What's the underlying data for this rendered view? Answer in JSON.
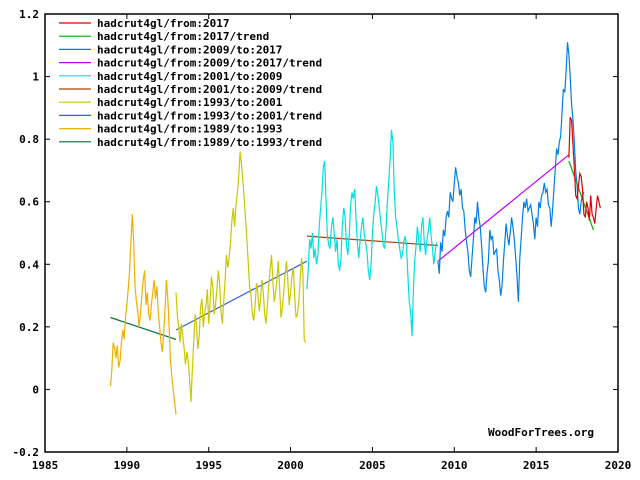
{
  "chart_data": {
    "type": "line",
    "title": "",
    "xlabel": "",
    "ylabel": "",
    "xlim": [
      1985,
      2020
    ],
    "ylim": [
      -0.2,
      1.2
    ],
    "xticks": [
      "1985",
      "1990",
      "1995",
      "2000",
      "2005",
      "2010",
      "2015",
      "2020"
    ],
    "xtick_values": [
      1985,
      1990,
      1995,
      2000,
      2005,
      2010,
      2015,
      2020
    ],
    "yticks": [
      "-0.2",
      "0",
      "0.2",
      "0.4",
      "0.6",
      "0.8",
      "1",
      "1.2"
    ],
    "ytick_values": [
      -0.2,
      0,
      0.2,
      0.4,
      0.6,
      0.8,
      1.0,
      1.2
    ],
    "grid": false,
    "legend_position": "top-left",
    "credit": "WoodForTrees.org",
    "series": [
      {
        "name": "hadcrut4gl/from:2017",
        "color": "#e00000",
        "kind": "data",
        "x0": 2017.0,
        "values": [
          0.74,
          0.87,
          0.86,
          0.78,
          0.71,
          0.62,
          0.61,
          0.65,
          0.69,
          0.68,
          0.64,
          0.56,
          0.55,
          0.6,
          0.58,
          0.54,
          0.62,
          0.56,
          0.55,
          0.53,
          0.58,
          0.62,
          0.6,
          0.58
        ]
      },
      {
        "name": "hadcrut4gl/from:2017/trend",
        "color": "#00b000",
        "kind": "trend",
        "x": [
          2017.0,
          2018.5
        ],
        "values": [
          0.73,
          0.51
        ]
      },
      {
        "name": "hadcrut4gl/from:2009/to:2017",
        "color": "#0080e0",
        "kind": "data",
        "x0": 2009.0,
        "values": [
          0.41,
          0.37,
          0.47,
          0.44,
          0.51,
          0.49,
          0.55,
          0.57,
          0.55,
          0.63,
          0.61,
          0.6,
          0.66,
          0.71,
          0.68,
          0.66,
          0.62,
          0.64,
          0.58,
          0.57,
          0.51,
          0.47,
          0.44,
          0.38,
          0.36,
          0.42,
          0.48,
          0.55,
          0.53,
          0.6,
          0.55,
          0.52,
          0.46,
          0.39,
          0.33,
          0.31,
          0.37,
          0.41,
          0.51,
          0.48,
          0.49,
          0.43,
          0.44,
          0.45,
          0.38,
          0.35,
          0.3,
          0.33,
          0.41,
          0.47,
          0.53,
          0.49,
          0.46,
          0.5,
          0.55,
          0.52,
          0.48,
          0.42,
          0.36,
          0.28,
          0.42,
          0.48,
          0.55,
          0.6,
          0.58,
          0.61,
          0.57,
          0.58,
          0.59,
          0.56,
          0.53,
          0.48,
          0.55,
          0.52,
          0.6,
          0.58,
          0.62,
          0.63,
          0.66,
          0.63,
          0.64,
          0.59,
          0.58,
          0.52,
          0.57,
          0.64,
          0.7,
          0.77,
          0.75,
          0.79,
          0.81,
          0.89,
          0.96,
          0.95,
          1.02,
          1.11,
          1.07,
          1.0,
          0.91,
          0.86,
          0.79,
          0.7,
          0.65,
          0.58,
          0.56,
          0.6,
          0.62,
          0.63
        ]
      },
      {
        "name": "hadcrut4gl/from:2009/to:2017/trend",
        "color": "#c000ff",
        "kind": "trend",
        "x": [
          2009.0,
          2017.0
        ],
        "values": [
          0.41,
          0.75
        ]
      },
      {
        "name": "hadcrut4gl/from:2001/to:2009",
        "color": "#00e0e0",
        "kind": "data",
        "x0": 2001.0,
        "values": [
          0.32,
          0.39,
          0.48,
          0.45,
          0.5,
          0.42,
          0.45,
          0.4,
          0.43,
          0.52,
          0.58,
          0.63,
          0.71,
          0.73,
          0.61,
          0.49,
          0.46,
          0.45,
          0.52,
          0.55,
          0.5,
          0.44,
          0.48,
          0.4,
          0.38,
          0.42,
          0.53,
          0.58,
          0.55,
          0.46,
          0.43,
          0.49,
          0.59,
          0.63,
          0.61,
          0.64,
          0.54,
          0.47,
          0.42,
          0.48,
          0.52,
          0.55,
          0.5,
          0.47,
          0.44,
          0.38,
          0.35,
          0.4,
          0.5,
          0.56,
          0.6,
          0.65,
          0.62,
          0.58,
          0.54,
          0.5,
          0.46,
          0.45,
          0.52,
          0.6,
          0.67,
          0.74,
          0.83,
          0.79,
          0.63,
          0.55,
          0.52,
          0.48,
          0.45,
          0.42,
          0.43,
          0.47,
          0.49,
          0.46,
          0.36,
          0.28,
          0.25,
          0.17,
          0.32,
          0.41,
          0.46,
          0.52,
          0.48,
          0.44,
          0.52,
          0.55,
          0.47,
          0.43,
          0.48,
          0.51,
          0.55,
          0.49,
          0.45,
          0.4,
          0.44,
          0.47
        ]
      },
      {
        "name": "hadcrut4gl/from:2001/to:2009/trend",
        "color": "#b04000",
        "kind": "trend",
        "x": [
          2001.0,
          2009.0
        ],
        "values": [
          0.49,
          0.46
        ]
      },
      {
        "name": "hadcrut4gl/from:1993/to:2001",
        "color": "#c8c800",
        "kind": "data",
        "x0": 1993.0,
        "values": [
          0.31,
          0.24,
          0.2,
          0.15,
          0.21,
          0.17,
          0.13,
          0.08,
          0.12,
          0.09,
          0.03,
          -0.04,
          0.06,
          0.15,
          0.24,
          0.21,
          0.13,
          0.17,
          0.26,
          0.29,
          0.2,
          0.24,
          0.27,
          0.32,
          0.21,
          0.28,
          0.36,
          0.33,
          0.24,
          0.27,
          0.32,
          0.38,
          0.34,
          0.25,
          0.21,
          0.28,
          0.35,
          0.43,
          0.39,
          0.42,
          0.47,
          0.54,
          0.58,
          0.52,
          0.59,
          0.63,
          0.68,
          0.76,
          0.72,
          0.67,
          0.61,
          0.55,
          0.48,
          0.4,
          0.33,
          0.3,
          0.24,
          0.22,
          0.27,
          0.34,
          0.31,
          0.25,
          0.29,
          0.35,
          0.31,
          0.24,
          0.21,
          0.27,
          0.33,
          0.38,
          0.43,
          0.35,
          0.28,
          0.31,
          0.35,
          0.41,
          0.32,
          0.23,
          0.26,
          0.31,
          0.37,
          0.41,
          0.35,
          0.27,
          0.31,
          0.36,
          0.39,
          0.3,
          0.23,
          0.24,
          0.28,
          0.35,
          0.42,
          0.37,
          0.16,
          0.15
        ]
      },
      {
        "name": "hadcrut4gl/from:1993/to:2001/trend",
        "color": "#3060e0",
        "kind": "trend",
        "x": [
          1993.0,
          2001.0
        ],
        "values": [
          0.19,
          0.41
        ]
      },
      {
        "name": "hadcrut4gl/from:1989/to:1993",
        "color": "#f0b000",
        "kind": "data",
        "x0": 1989.0,
        "values": [
          0.01,
          0.06,
          0.15,
          0.13,
          0.1,
          0.14,
          0.07,
          0.09,
          0.15,
          0.19,
          0.16,
          0.23,
          0.27,
          0.32,
          0.38,
          0.47,
          0.56,
          0.47,
          0.33,
          0.28,
          0.25,
          0.2,
          0.24,
          0.3,
          0.35,
          0.38,
          0.27,
          0.31,
          0.24,
          0.22,
          0.27,
          0.31,
          0.35,
          0.29,
          0.33,
          0.25,
          0.2,
          0.15,
          0.12,
          0.18,
          0.26,
          0.35,
          0.29,
          0.2,
          0.09,
          0.04,
          0.0,
          -0.04,
          -0.08
        ]
      },
      {
        "name": "hadcrut4gl/from:1989/to:1993/trend",
        "color": "#007030",
        "kind": "trend",
        "x": [
          1989.0,
          1993.0
        ],
        "values": [
          0.23,
          0.16
        ]
      }
    ]
  }
}
